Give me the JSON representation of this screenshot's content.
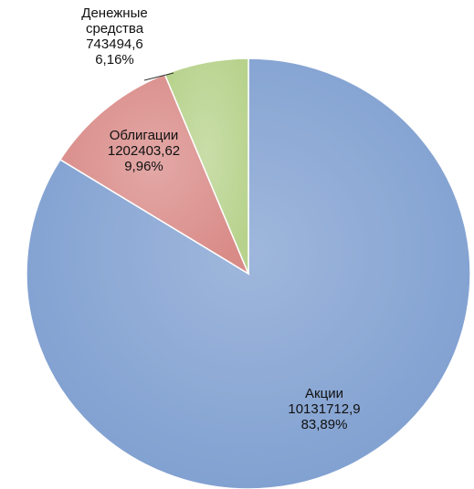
{
  "chart_data": {
    "type": "pie",
    "categories": [
      "Акции",
      "Облигации",
      "Денежные средства"
    ],
    "values": [
      10131712.9,
      1202403.62,
      743494.6
    ],
    "value_labels": [
      "10131712,9",
      "1202403,62",
      "743494,6"
    ],
    "percents": [
      83.89,
      9.96,
      6.16
    ],
    "percent_labels": [
      "83,89%",
      "9,96%",
      "6,16%"
    ],
    "colors": [
      "#7f9fd0",
      "#d98b88",
      "#b7d28c"
    ]
  }
}
